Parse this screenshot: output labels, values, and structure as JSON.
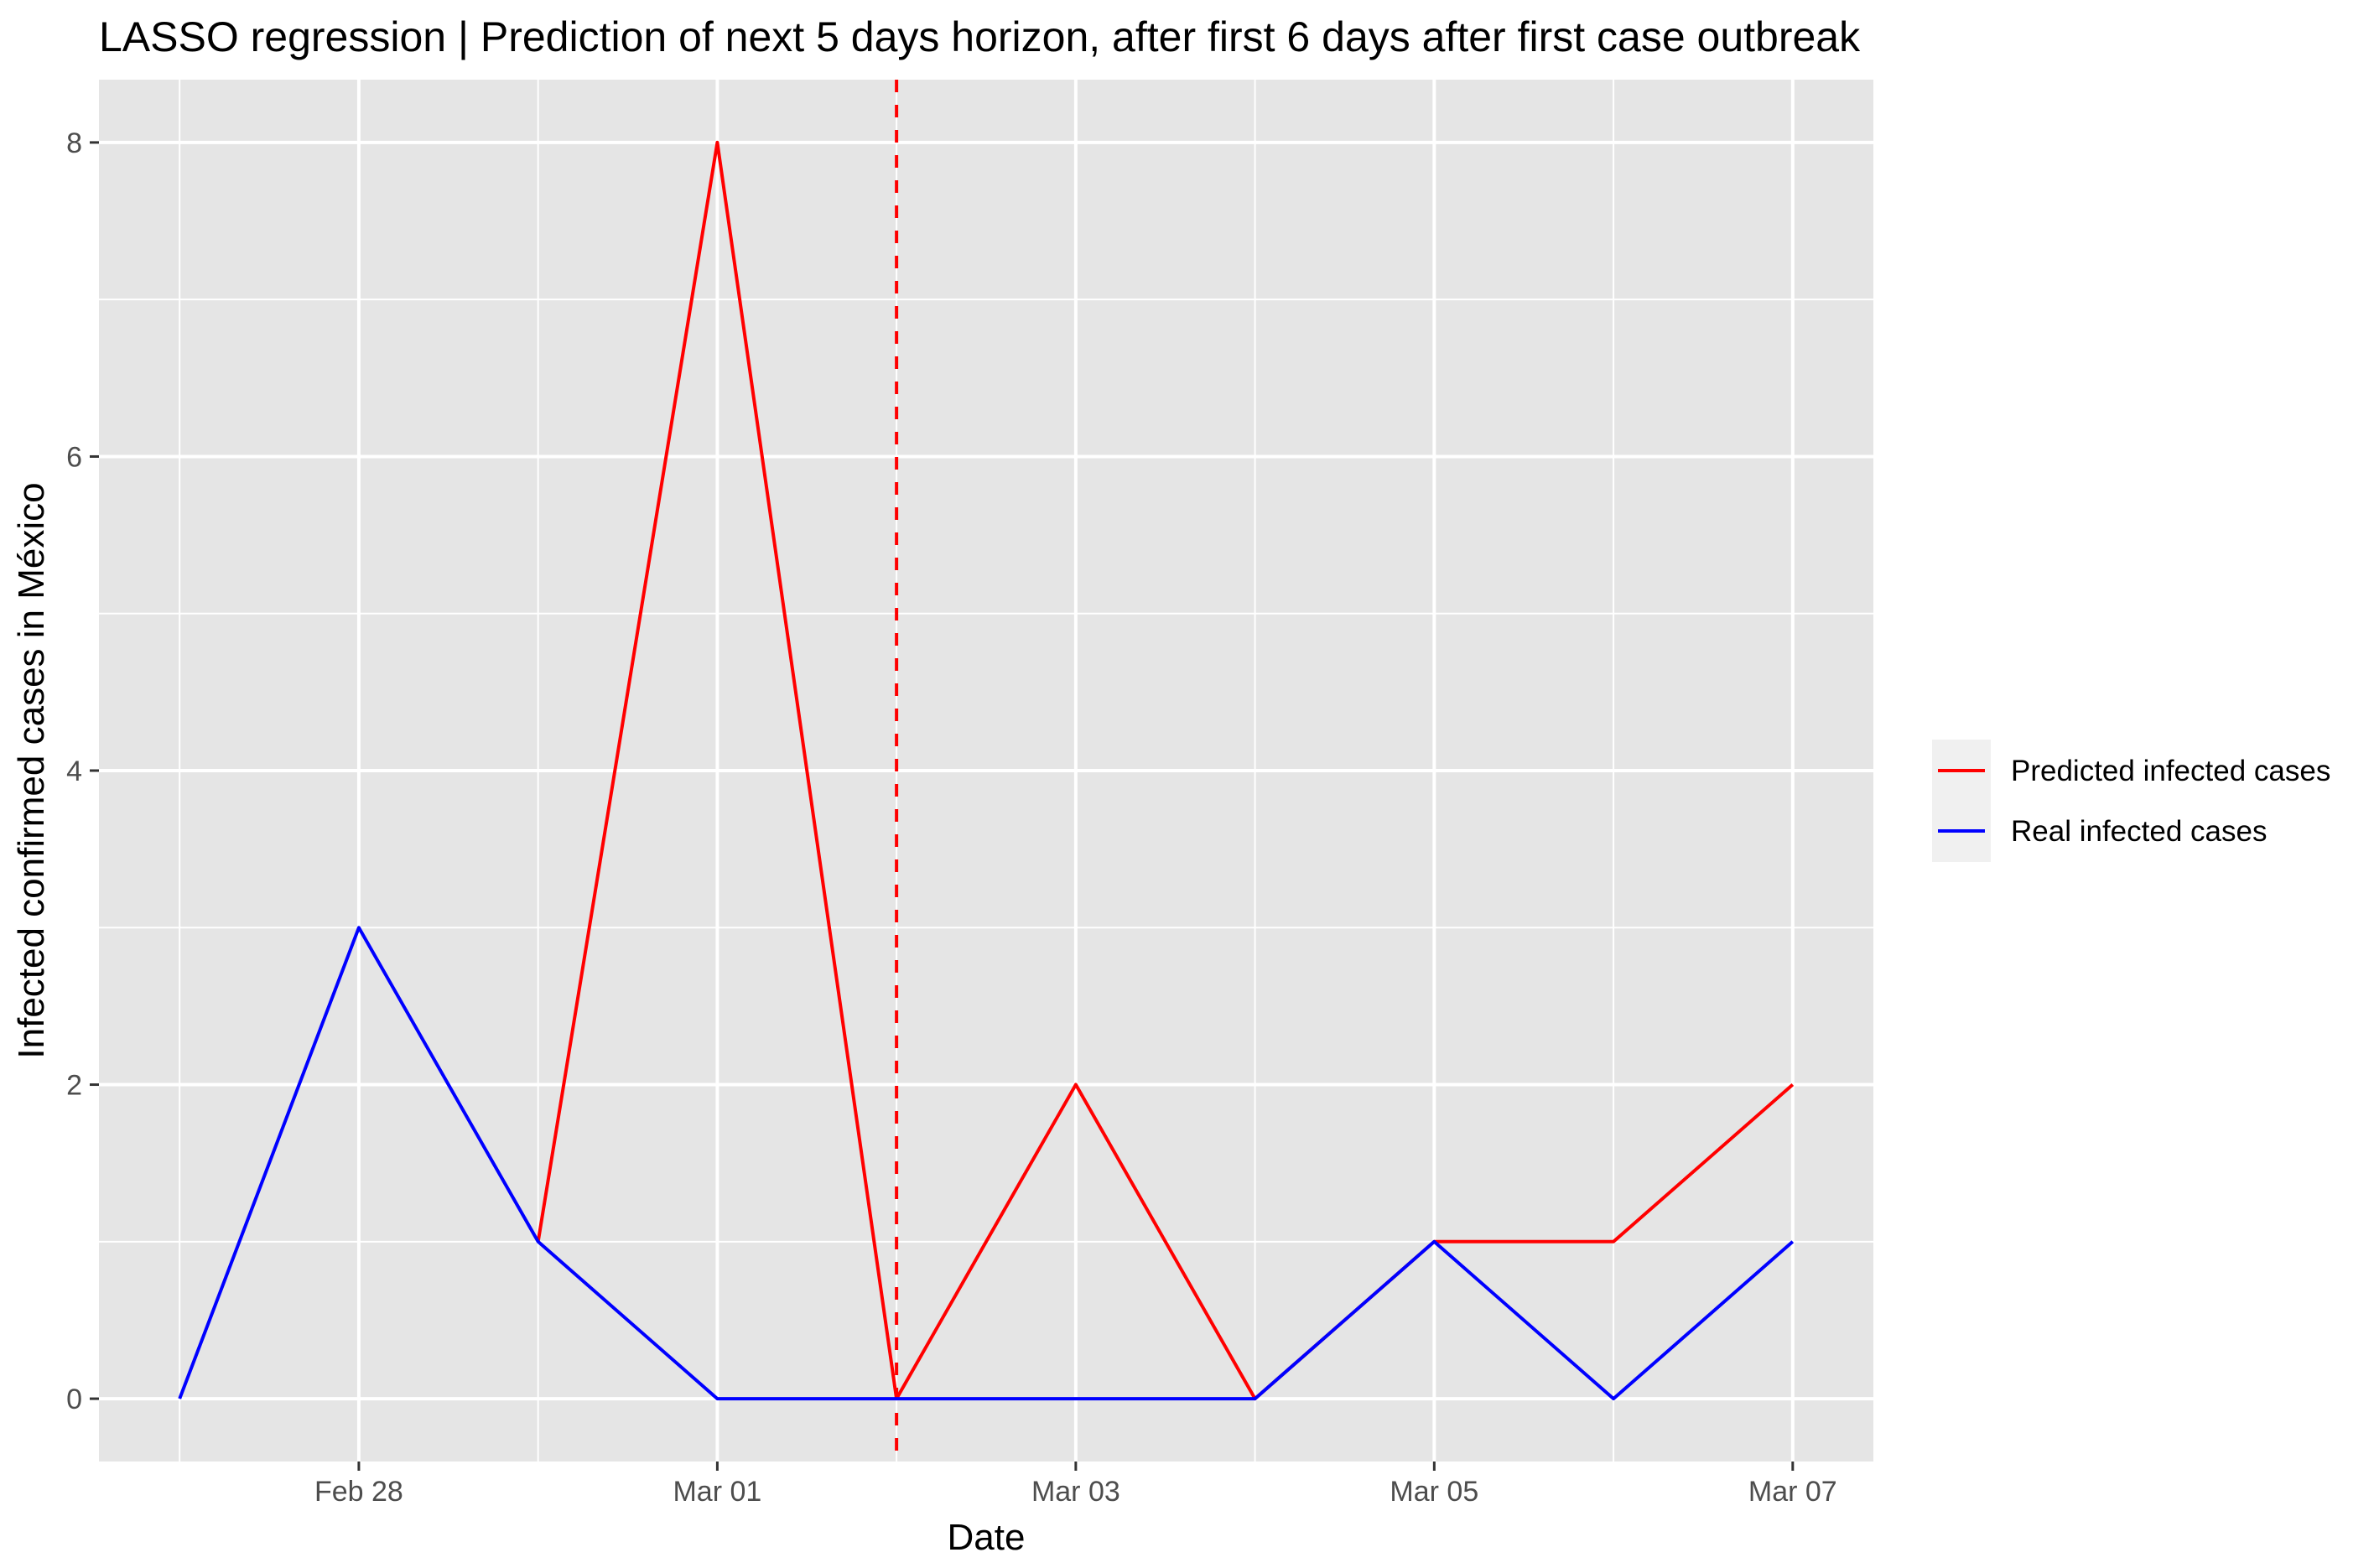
{
  "chart_data": {
    "type": "line",
    "title": "LASSO regression | Prediction of next 5 days horizon, after first 6 days after first case outbreak",
    "xlabel": "Date",
    "ylabel": "Infected confirmed cases in México",
    "x": [
      "2020-02-27",
      "2020-02-28",
      "2020-02-29",
      "2020-03-01",
      "2020-03-02",
      "2020-03-03",
      "2020-03-04",
      "2020-03-05",
      "2020-03-06",
      "2020-03-07"
    ],
    "x_tick_values": [
      "2020-02-28",
      "2020-03-01",
      "2020-03-03",
      "2020-03-05",
      "2020-03-07"
    ],
    "x_tick_labels": [
      "Feb 28",
      "Mar 01",
      "Mar 03",
      "Mar 05",
      "Mar 07"
    ],
    "xlim": [
      "2020-02-26",
      "2020-03-07"
    ],
    "y_ticks": [
      0,
      2,
      4,
      6,
      8
    ],
    "ylim": [
      -0.4,
      8.4
    ],
    "vline": {
      "x": "2020-03-02",
      "color": "#ff0000",
      "style": "dashed"
    },
    "series": [
      {
        "name": "Predicted infected cases",
        "color": "#ff0000",
        "x": [
          "2020-02-29",
          "2020-03-01",
          "2020-03-02",
          "2020-03-03",
          "2020-03-04",
          "2020-03-05",
          "2020-03-06",
          "2020-03-07"
        ],
        "values": [
          1,
          8,
          0,
          2,
          0,
          1,
          1,
          2
        ]
      },
      {
        "name": "Real infected cases",
        "color": "#0000ff",
        "x": [
          "2020-02-27",
          "2020-02-28",
          "2020-02-29",
          "2020-03-01",
          "2020-03-02",
          "2020-03-03",
          "2020-03-04",
          "2020-03-05",
          "2020-03-06",
          "2020-03-07"
        ],
        "values": [
          0,
          3,
          1,
          0,
          0,
          0,
          0,
          1,
          0,
          1
        ]
      }
    ],
    "grid": true,
    "legend_position": "right",
    "panel_background": "#e5e5e5",
    "grid_color": "#ffffff"
  }
}
